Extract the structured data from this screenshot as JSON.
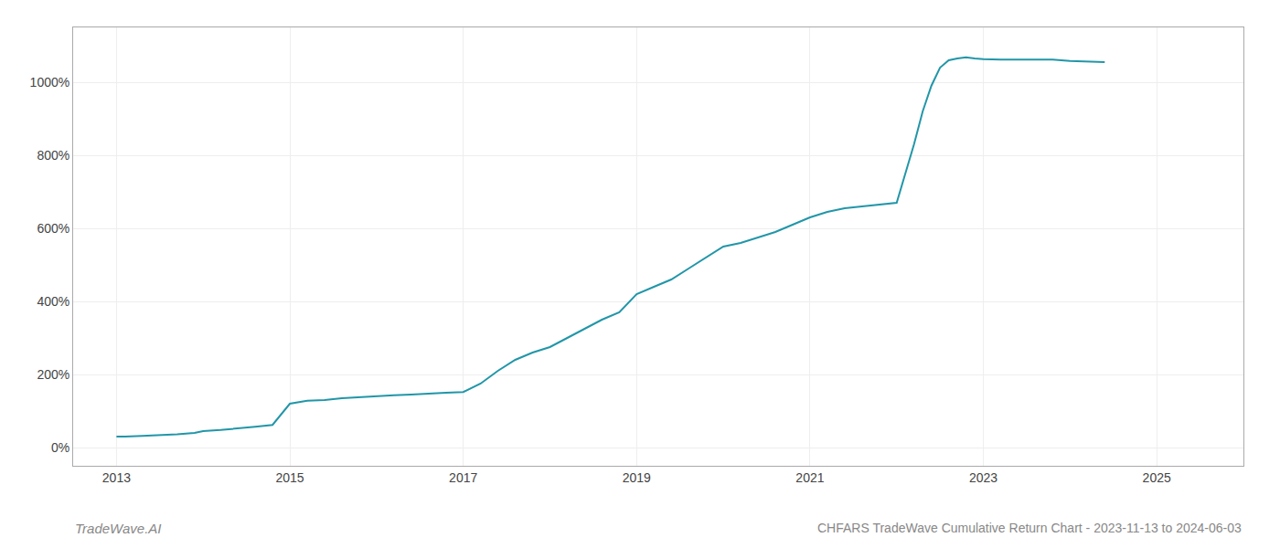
{
  "chart_data": {
    "type": "line",
    "title": "CHFARS TradeWave Cumulative Return Chart - 2023-11-13 to 2024-06-03",
    "annotations": [
      "TradeWave.AI"
    ],
    "color": "#2196a8",
    "grid": true,
    "x": [
      2013.0,
      2013.1,
      2013.3,
      2013.5,
      2013.7,
      2013.9,
      2014.0,
      2014.2,
      2014.4,
      2014.6,
      2014.8,
      2015.0,
      2015.2,
      2015.4,
      2015.6,
      2015.8,
      2016.0,
      2016.2,
      2016.4,
      2016.6,
      2016.8,
      2017.0,
      2017.2,
      2017.4,
      2017.6,
      2017.8,
      2018.0,
      2018.2,
      2018.4,
      2018.6,
      2018.8,
      2019.0,
      2019.2,
      2019.4,
      2019.6,
      2019.8,
      2020.0,
      2020.2,
      2020.4,
      2020.6,
      2020.8,
      2021.0,
      2021.2,
      2021.4,
      2021.6,
      2021.8,
      2022.0,
      2022.1,
      2022.2,
      2022.3,
      2022.4,
      2022.5,
      2022.6,
      2022.7,
      2022.8,
      2022.9,
      2023.0,
      2023.2,
      2023.4,
      2023.6,
      2023.8,
      2024.0,
      2024.4
    ],
    "values": [
      30,
      30,
      32,
      34,
      36,
      40,
      45,
      48,
      52,
      57,
      62,
      120,
      128,
      130,
      135,
      138,
      140,
      143,
      145,
      148,
      150,
      152,
      175,
      210,
      240,
      260,
      275,
      300,
      325,
      350,
      370,
      420,
      440,
      460,
      490,
      520,
      550,
      560,
      575,
      590,
      610,
      630,
      645,
      655,
      660,
      665,
      670,
      750,
      830,
      920,
      990,
      1040,
      1060,
      1065,
      1068,
      1065,
      1063,
      1062,
      1062,
      1062,
      1062,
      1058,
      1055
    ],
    "xlim": [
      2012.5,
      2026.0
    ],
    "xticks": [
      2013,
      2015,
      2017,
      2019,
      2021,
      2023,
      2025
    ],
    "ylim": [
      -50,
      1150
    ],
    "yticks": [
      {
        "value": 0,
        "label": "0%"
      },
      {
        "value": 200,
        "label": "200%"
      },
      {
        "value": 400,
        "label": "400%"
      },
      {
        "value": 600,
        "label": "600%"
      },
      {
        "value": 800,
        "label": "800%"
      },
      {
        "value": 1000,
        "label": "1000%"
      }
    ]
  }
}
